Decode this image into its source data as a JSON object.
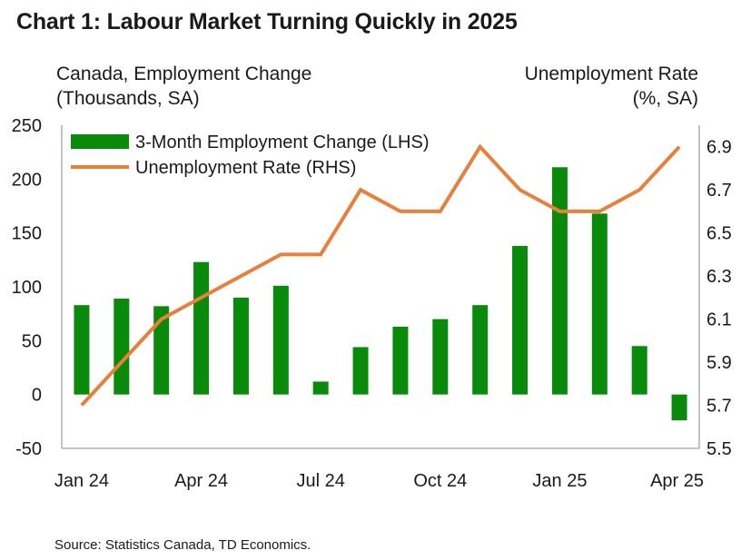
{
  "title": "Chart 1: Labour Market Turning Quickly in 2025",
  "lhs_label_line1": "Canada, Employment Change",
  "lhs_label_line2": "(Thousands, SA)",
  "rhs_label_line1": "Unemployment Rate",
  "rhs_label_line2": "(%, SA)",
  "source": "Source: Statistics Canada, TD Economics.",
  "colors": {
    "bar": "#0a8a0a",
    "line": "#e8803a",
    "axis": "#8a8a8a",
    "text": "#1a1a1a"
  },
  "chart_data": {
    "type": "bar",
    "x": [
      "Jan 24",
      "Feb 24",
      "Mar 24",
      "Apr 24",
      "May 24",
      "Jun 24",
      "Jul 24",
      "Aug 24",
      "Sep 24",
      "Oct 24",
      "Nov 24",
      "Dec 24",
      "Jan 25",
      "Feb 25",
      "Mar 25",
      "Apr 25"
    ],
    "x_tick_labels": [
      "Jan 24",
      "Apr 24",
      "Jul 24",
      "Oct 24",
      "Jan 25",
      "Apr 25"
    ],
    "x_tick_positions": [
      0,
      3,
      6,
      9,
      12,
      15
    ],
    "series": [
      {
        "name": "3-Month Employment Change (LHS)",
        "type": "bar",
        "axis": "left",
        "values": [
          83,
          89,
          82,
          123,
          90,
          101,
          12,
          44,
          63,
          70,
          83,
          138,
          211,
          168,
          45,
          -24
        ]
      },
      {
        "name": "Unemployment Rate (RHS)",
        "type": "line",
        "axis": "right",
        "values": [
          5.7,
          5.9,
          6.1,
          6.2,
          6.3,
          6.4,
          6.4,
          6.7,
          6.6,
          6.6,
          6.9,
          6.7,
          6.6,
          6.6,
          6.7,
          6.9
        ]
      }
    ],
    "left_axis": {
      "ylim": [
        -50,
        250
      ],
      "ticks": [
        -50,
        0,
        50,
        100,
        150,
        200,
        250
      ]
    },
    "right_axis": {
      "ylim": [
        5.5,
        7.0
      ],
      "ticks": [
        "5.5",
        "5.7",
        "5.9",
        "6.1",
        "6.3",
        "6.5",
        "6.7",
        "6.9"
      ]
    },
    "legend": {
      "position": "top-left",
      "entries": [
        "3-Month Employment Change (LHS)",
        "Unemployment Rate (RHS)"
      ]
    }
  }
}
